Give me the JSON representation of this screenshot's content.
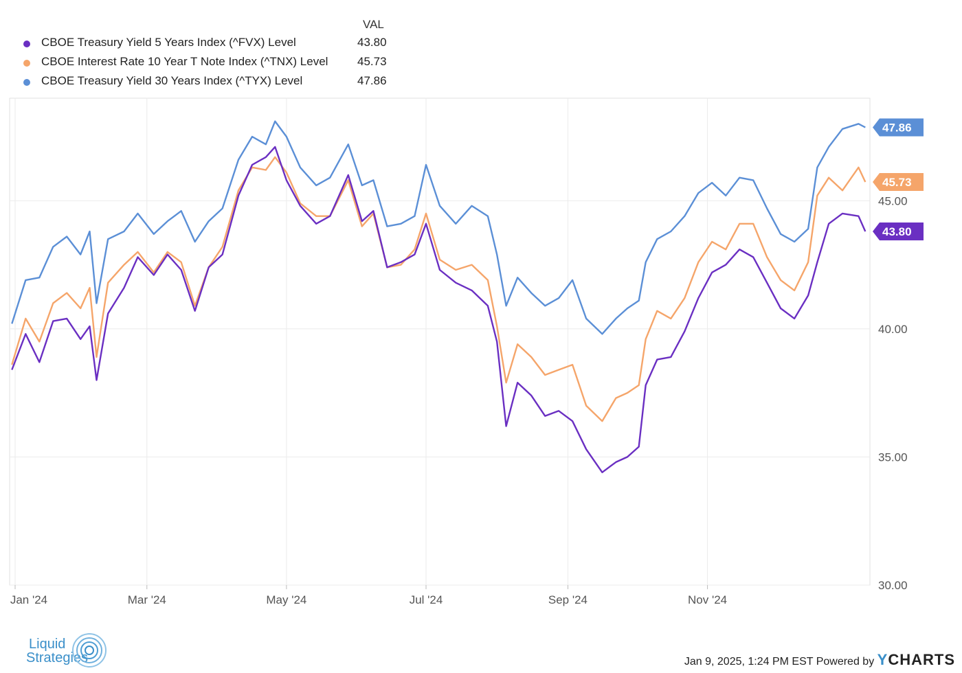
{
  "legend": {
    "header": "VAL",
    "items": [
      {
        "name": "CBOE Treasury Yield 5 Years Index (^FVX) Level",
        "value": "43.80",
        "color": "#6a2fc2"
      },
      {
        "name": "CBOE Interest Rate 10 Year T Note Index (^TNX) Level",
        "value": "45.73",
        "color": "#f5a56a"
      },
      {
        "name": "CBOE Treasury Yield 30 Years Index (^TYX) Level",
        "value": "47.86",
        "color": "#5b8fd6"
      }
    ]
  },
  "footer": {
    "logo_line1": "Liquid",
    "logo_line2": "Strategies",
    "timestamp": "Jan 9, 2025, 1:24 PM EST Powered by",
    "brand_y": "Y",
    "brand_rest": "CHARTS"
  },
  "chart_data": {
    "type": "line",
    "x_ticks": [
      "Jan '24",
      "Mar '24",
      "May '24",
      "Jul '24",
      "Sep '24",
      "Nov '24"
    ],
    "y_ticks": [
      "30.00",
      "35.00",
      "40.00",
      "45.00"
    ],
    "ylim": [
      30,
      49
    ],
    "grid": true,
    "series": [
      {
        "name": "CBOE Treasury Yield 5 Years Index (^FVX) Level",
        "color": "#6a2fc2",
        "end_label": "43.80",
        "points": [
          [
            "2024-01-02",
            38.4
          ],
          [
            "2024-01-08",
            39.8
          ],
          [
            "2024-01-14",
            38.7
          ],
          [
            "2024-01-20",
            40.3
          ],
          [
            "2024-01-26",
            40.4
          ],
          [
            "2024-02-01",
            39.6
          ],
          [
            "2024-02-05",
            40.1
          ],
          [
            "2024-02-08",
            38.0
          ],
          [
            "2024-02-13",
            40.6
          ],
          [
            "2024-02-20",
            41.6
          ],
          [
            "2024-02-26",
            42.8
          ],
          [
            "2024-03-04",
            42.1
          ],
          [
            "2024-03-10",
            42.9
          ],
          [
            "2024-03-16",
            42.3
          ],
          [
            "2024-03-22",
            40.7
          ],
          [
            "2024-03-28",
            42.4
          ],
          [
            "2024-04-03",
            42.9
          ],
          [
            "2024-04-10",
            45.2
          ],
          [
            "2024-04-16",
            46.4
          ],
          [
            "2024-04-22",
            46.7
          ],
          [
            "2024-04-26",
            47.1
          ],
          [
            "2024-05-01",
            45.8
          ],
          [
            "2024-05-07",
            44.8
          ],
          [
            "2024-05-14",
            44.1
          ],
          [
            "2024-05-20",
            44.4
          ],
          [
            "2024-05-28",
            46.0
          ],
          [
            "2024-06-03",
            44.2
          ],
          [
            "2024-06-08",
            44.6
          ],
          [
            "2024-06-14",
            42.4
          ],
          [
            "2024-06-20",
            42.6
          ],
          [
            "2024-06-26",
            42.9
          ],
          [
            "2024-07-01",
            44.1
          ],
          [
            "2024-07-07",
            42.3
          ],
          [
            "2024-07-14",
            41.8
          ],
          [
            "2024-07-21",
            41.5
          ],
          [
            "2024-07-28",
            40.9
          ],
          [
            "2024-08-01",
            39.5
          ],
          [
            "2024-08-05",
            36.2
          ],
          [
            "2024-08-10",
            37.9
          ],
          [
            "2024-08-16",
            37.4
          ],
          [
            "2024-08-22",
            36.6
          ],
          [
            "2024-08-28",
            36.8
          ],
          [
            "2024-09-03",
            36.4
          ],
          [
            "2024-09-09",
            35.3
          ],
          [
            "2024-09-16",
            34.4
          ],
          [
            "2024-09-22",
            34.8
          ],
          [
            "2024-09-27",
            35.0
          ],
          [
            "2024-10-02",
            35.4
          ],
          [
            "2024-10-05",
            37.8
          ],
          [
            "2024-10-10",
            38.8
          ],
          [
            "2024-10-16",
            38.9
          ],
          [
            "2024-10-22",
            39.9
          ],
          [
            "2024-10-28",
            41.2
          ],
          [
            "2024-11-03",
            42.2
          ],
          [
            "2024-11-09",
            42.5
          ],
          [
            "2024-11-15",
            43.1
          ],
          [
            "2024-11-21",
            42.8
          ],
          [
            "2024-11-27",
            41.8
          ],
          [
            "2024-12-03",
            40.8
          ],
          [
            "2024-12-09",
            40.4
          ],
          [
            "2024-12-15",
            41.3
          ],
          [
            "2024-12-19",
            42.6
          ],
          [
            "2024-12-24",
            44.1
          ],
          [
            "2024-12-30",
            44.5
          ],
          [
            "2025-01-06",
            44.4
          ],
          [
            "2025-01-09",
            43.8
          ]
        ]
      },
      {
        "name": "CBOE Interest Rate 10 Year T Note Index (^TNX) Level",
        "color": "#f5a56a",
        "end_label": "45.73",
        "points": [
          [
            "2024-01-02",
            38.6
          ],
          [
            "2024-01-08",
            40.4
          ],
          [
            "2024-01-14",
            39.5
          ],
          [
            "2024-01-20",
            41.0
          ],
          [
            "2024-01-26",
            41.4
          ],
          [
            "2024-02-01",
            40.8
          ],
          [
            "2024-02-05",
            41.6
          ],
          [
            "2024-02-08",
            38.9
          ],
          [
            "2024-02-13",
            41.8
          ],
          [
            "2024-02-20",
            42.5
          ],
          [
            "2024-02-26",
            43.0
          ],
          [
            "2024-03-04",
            42.2
          ],
          [
            "2024-03-10",
            43.0
          ],
          [
            "2024-03-16",
            42.6
          ],
          [
            "2024-03-22",
            40.9
          ],
          [
            "2024-03-28",
            42.4
          ],
          [
            "2024-04-03",
            43.2
          ],
          [
            "2024-04-10",
            45.4
          ],
          [
            "2024-04-16",
            46.3
          ],
          [
            "2024-04-22",
            46.2
          ],
          [
            "2024-04-26",
            46.7
          ],
          [
            "2024-05-01",
            46.1
          ],
          [
            "2024-05-07",
            44.9
          ],
          [
            "2024-05-14",
            44.4
          ],
          [
            "2024-05-20",
            44.4
          ],
          [
            "2024-05-28",
            45.8
          ],
          [
            "2024-06-03",
            44.0
          ],
          [
            "2024-06-08",
            44.5
          ],
          [
            "2024-06-14",
            42.4
          ],
          [
            "2024-06-20",
            42.5
          ],
          [
            "2024-06-26",
            43.1
          ],
          [
            "2024-07-01",
            44.5
          ],
          [
            "2024-07-07",
            42.7
          ],
          [
            "2024-07-14",
            42.3
          ],
          [
            "2024-07-21",
            42.5
          ],
          [
            "2024-07-28",
            41.9
          ],
          [
            "2024-08-01",
            40.1
          ],
          [
            "2024-08-05",
            37.9
          ],
          [
            "2024-08-10",
            39.4
          ],
          [
            "2024-08-16",
            38.9
          ],
          [
            "2024-08-22",
            38.2
          ],
          [
            "2024-08-28",
            38.4
          ],
          [
            "2024-09-03",
            38.6
          ],
          [
            "2024-09-09",
            37.0
          ],
          [
            "2024-09-16",
            36.4
          ],
          [
            "2024-09-22",
            37.3
          ],
          [
            "2024-09-27",
            37.5
          ],
          [
            "2024-10-02",
            37.8
          ],
          [
            "2024-10-05",
            39.6
          ],
          [
            "2024-10-10",
            40.7
          ],
          [
            "2024-10-16",
            40.4
          ],
          [
            "2024-10-22",
            41.2
          ],
          [
            "2024-10-28",
            42.6
          ],
          [
            "2024-11-03",
            43.4
          ],
          [
            "2024-11-09",
            43.1
          ],
          [
            "2024-11-15",
            44.1
          ],
          [
            "2024-11-21",
            44.1
          ],
          [
            "2024-11-27",
            42.8
          ],
          [
            "2024-12-03",
            41.9
          ],
          [
            "2024-12-09",
            41.5
          ],
          [
            "2024-12-15",
            42.6
          ],
          [
            "2024-12-19",
            45.2
          ],
          [
            "2024-12-24",
            45.9
          ],
          [
            "2024-12-30",
            45.4
          ],
          [
            "2025-01-06",
            46.3
          ],
          [
            "2025-01-09",
            45.73
          ]
        ]
      },
      {
        "name": "CBOE Treasury Yield 30 Years Index (^TYX) Level",
        "color": "#5b8fd6",
        "end_label": "47.86",
        "points": [
          [
            "2024-01-02",
            40.2
          ],
          [
            "2024-01-08",
            41.9
          ],
          [
            "2024-01-14",
            42.0
          ],
          [
            "2024-01-20",
            43.2
          ],
          [
            "2024-01-26",
            43.6
          ],
          [
            "2024-02-01",
            42.9
          ],
          [
            "2024-02-05",
            43.8
          ],
          [
            "2024-02-08",
            41.0
          ],
          [
            "2024-02-13",
            43.5
          ],
          [
            "2024-02-20",
            43.8
          ],
          [
            "2024-02-26",
            44.5
          ],
          [
            "2024-03-04",
            43.7
          ],
          [
            "2024-03-10",
            44.2
          ],
          [
            "2024-03-16",
            44.6
          ],
          [
            "2024-03-22",
            43.4
          ],
          [
            "2024-03-28",
            44.2
          ],
          [
            "2024-04-03",
            44.7
          ],
          [
            "2024-04-10",
            46.6
          ],
          [
            "2024-04-16",
            47.5
          ],
          [
            "2024-04-22",
            47.2
          ],
          [
            "2024-04-26",
            48.1
          ],
          [
            "2024-05-01",
            47.5
          ],
          [
            "2024-05-07",
            46.3
          ],
          [
            "2024-05-14",
            45.6
          ],
          [
            "2024-05-20",
            45.9
          ],
          [
            "2024-05-28",
            47.2
          ],
          [
            "2024-06-03",
            45.6
          ],
          [
            "2024-06-08",
            45.8
          ],
          [
            "2024-06-14",
            44.0
          ],
          [
            "2024-06-20",
            44.1
          ],
          [
            "2024-06-26",
            44.4
          ],
          [
            "2024-07-01",
            46.4
          ],
          [
            "2024-07-07",
            44.8
          ],
          [
            "2024-07-14",
            44.1
          ],
          [
            "2024-07-21",
            44.8
          ],
          [
            "2024-07-28",
            44.4
          ],
          [
            "2024-08-01",
            42.9
          ],
          [
            "2024-08-05",
            40.9
          ],
          [
            "2024-08-10",
            42.0
          ],
          [
            "2024-08-16",
            41.4
          ],
          [
            "2024-08-22",
            40.9
          ],
          [
            "2024-08-28",
            41.2
          ],
          [
            "2024-09-03",
            41.9
          ],
          [
            "2024-09-09",
            40.4
          ],
          [
            "2024-09-16",
            39.8
          ],
          [
            "2024-09-22",
            40.4
          ],
          [
            "2024-09-27",
            40.8
          ],
          [
            "2024-10-02",
            41.1
          ],
          [
            "2024-10-05",
            42.6
          ],
          [
            "2024-10-10",
            43.5
          ],
          [
            "2024-10-16",
            43.8
          ],
          [
            "2024-10-22",
            44.4
          ],
          [
            "2024-10-28",
            45.3
          ],
          [
            "2024-11-03",
            45.7
          ],
          [
            "2024-11-09",
            45.2
          ],
          [
            "2024-11-15",
            45.9
          ],
          [
            "2024-11-21",
            45.8
          ],
          [
            "2024-11-27",
            44.7
          ],
          [
            "2024-12-03",
            43.7
          ],
          [
            "2024-12-09",
            43.4
          ],
          [
            "2024-12-15",
            43.9
          ],
          [
            "2024-12-19",
            46.3
          ],
          [
            "2024-12-24",
            47.1
          ],
          [
            "2024-12-30",
            47.8
          ],
          [
            "2025-01-06",
            48.0
          ],
          [
            "2025-01-09",
            47.86
          ]
        ]
      }
    ]
  }
}
